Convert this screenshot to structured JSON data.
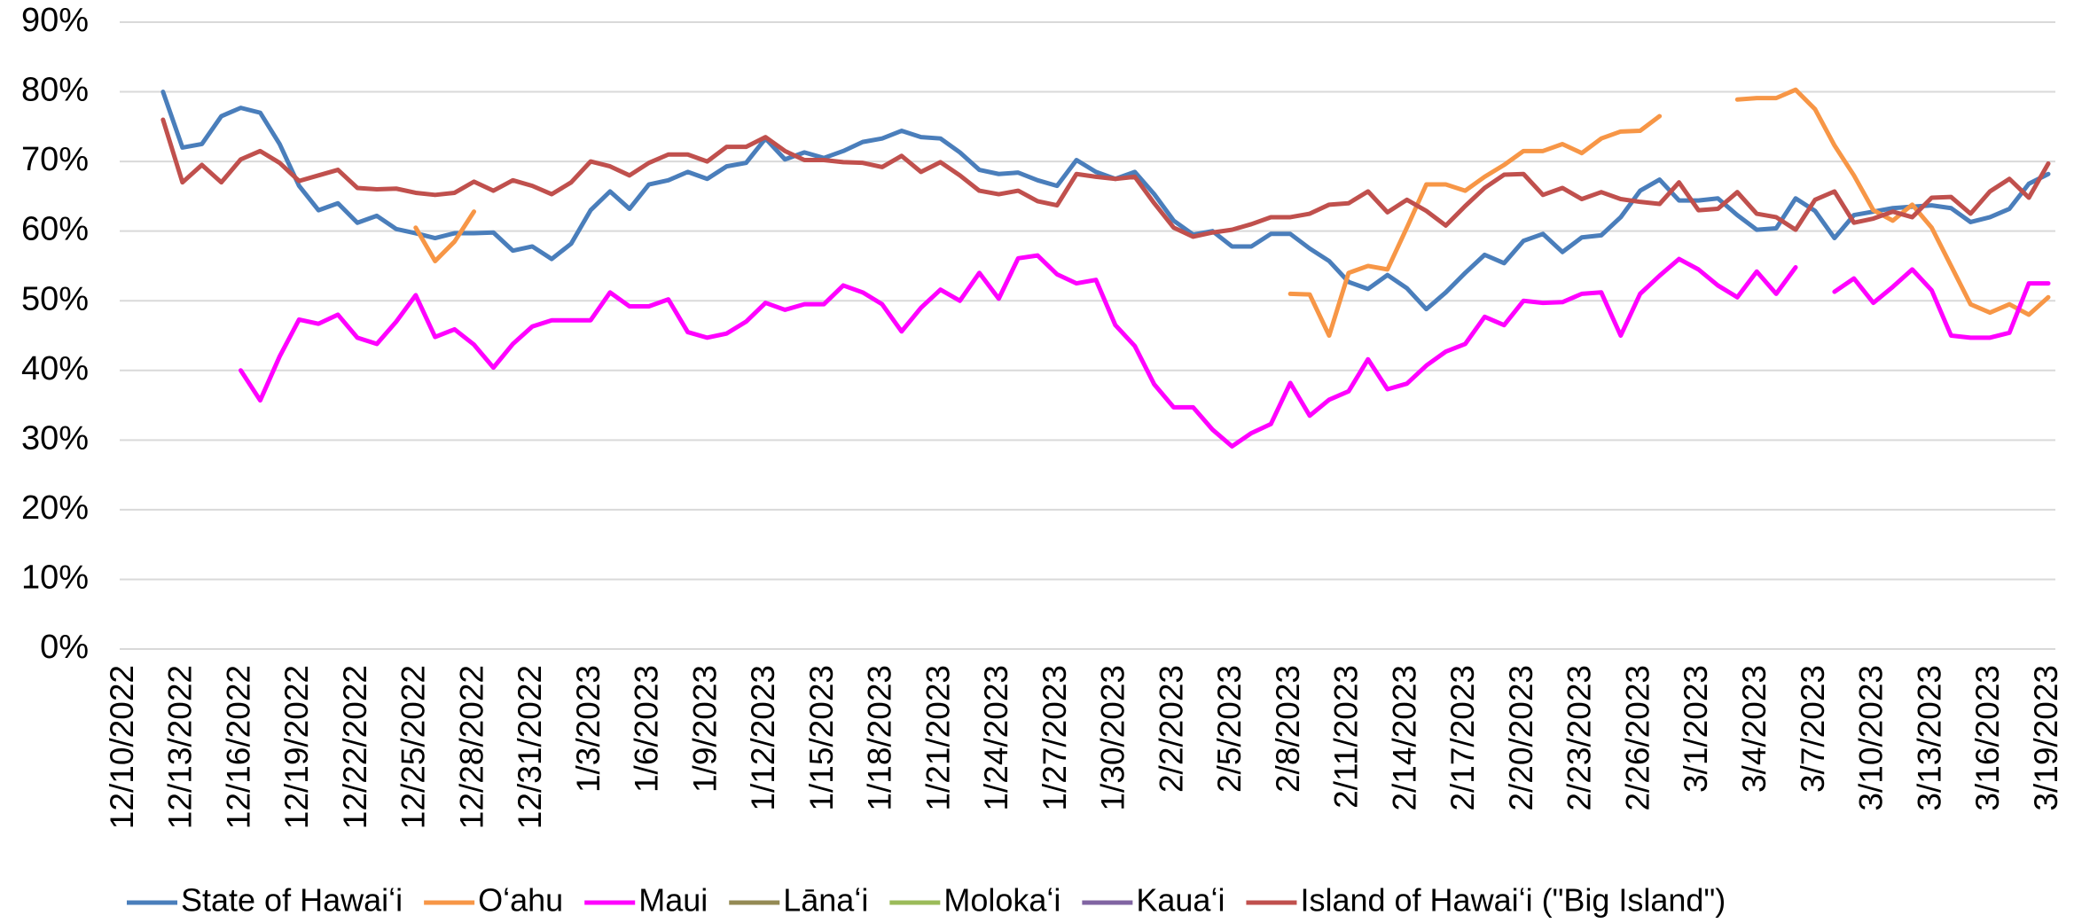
{
  "chart_data": {
    "type": "line",
    "categories": [
      "12/10/2022",
      null,
      null,
      "12/13/2022",
      null,
      null,
      "12/16/2022",
      null,
      null,
      "12/19/2022",
      null,
      null,
      "12/22/2022",
      null,
      null,
      "12/25/2022",
      null,
      null,
      "12/28/2022",
      null,
      null,
      "12/31/2022",
      null,
      null,
      "1/3/2023",
      null,
      null,
      "1/6/2023",
      null,
      null,
      "1/9/2023",
      null,
      null,
      "1/12/2023",
      null,
      null,
      "1/15/2023",
      null,
      null,
      "1/18/2023",
      null,
      null,
      "1/21/2023",
      null,
      null,
      "1/24/2023",
      null,
      null,
      "1/27/2023",
      null,
      null,
      "1/30/2023",
      null,
      null,
      "2/2/2023",
      null,
      null,
      "2/5/2023",
      null,
      null,
      "2/8/2023",
      null,
      null,
      "2/11/2023",
      null,
      null,
      "2/14/2023",
      null,
      null,
      "2/17/2023",
      null,
      null,
      "2/20/2023",
      null,
      null,
      "2/23/2023",
      null,
      null,
      "2/26/2023",
      null,
      null,
      "3/1/2023",
      null,
      null,
      "3/4/2023",
      null,
      null,
      "3/7/2023",
      null,
      null,
      "3/10/2023",
      null,
      null,
      "3/13/2023",
      null,
      null,
      "3/16/2023",
      null,
      null,
      "3/19/2023"
    ],
    "series": [
      {
        "name": "State of Hawaiʻi",
        "color": "#4a7ebb",
        "values": [
          null,
          null,
          80,
          72,
          72.5,
          76.5,
          77.7,
          77,
          72.5,
          66.5,
          63,
          64,
          61.2,
          62.2,
          60.3,
          59.7,
          59,
          59.7,
          59.7,
          59.8,
          57.2,
          57.8,
          56,
          58.2,
          63,
          65.7,
          63.2,
          66.7,
          67.3,
          68.5,
          67.5,
          69.3,
          69.8,
          73.3,
          70.3,
          71.3,
          70.5,
          71.5,
          72.8,
          73.3,
          74.4,
          73.5,
          73.3,
          71.3,
          68.8,
          68.2,
          68.4,
          67.3,
          66.5,
          70.2,
          68.5,
          67.5,
          68.5,
          65.3,
          61.5,
          59.5,
          60,
          57.8,
          57.8,
          59.6,
          59.6,
          57.5,
          55.7,
          52.7,
          51.7,
          53.7,
          51.8,
          48.8,
          51.2,
          54,
          56.6,
          55.4,
          58.6,
          59.6,
          57,
          59.1,
          59.4,
          62,
          65.8,
          67.4,
          64.4,
          64.4,
          64.7,
          62.3,
          60.2,
          60.4,
          64.7,
          62.9,
          59,
          62.3,
          62.8,
          63.3,
          63.5,
          63.7,
          63.3,
          61.3,
          62,
          63.2,
          66.8,
          68.2
        ]
      },
      {
        "name": "Oʻahu",
        "color": "#f79646",
        "values": [
          null,
          null,
          null,
          null,
          null,
          null,
          null,
          null,
          null,
          null,
          null,
          null,
          null,
          null,
          null,
          60.5,
          55.7,
          58.5,
          62.8,
          null,
          null,
          null,
          null,
          null,
          null,
          null,
          null,
          null,
          null,
          null,
          null,
          null,
          null,
          null,
          null,
          null,
          null,
          null,
          null,
          null,
          null,
          null,
          null,
          null,
          null,
          null,
          null,
          null,
          null,
          null,
          null,
          null,
          null,
          null,
          null,
          null,
          null,
          null,
          null,
          null,
          51,
          50.9,
          45,
          54,
          55,
          54.5,
          60.5,
          66.7,
          66.7,
          65.8,
          67.8,
          69.5,
          71.5,
          71.5,
          72.5,
          71.2,
          73.3,
          74.3,
          74.4,
          76.5,
          null,
          null,
          null,
          78.9,
          79.1,
          79.1,
          80.3,
          77.5,
          72.3,
          68,
          63,
          61.5,
          63.8,
          60.5,
          55,
          49.5,
          48.3,
          49.5,
          48,
          50.5
        ]
      },
      {
        "name": "Maui",
        "color": "#ff00ff",
        "values": [
          null,
          null,
          null,
          null,
          null,
          null,
          40,
          35.7,
          42,
          47.3,
          46.7,
          48,
          44.7,
          43.8,
          47,
          50.8,
          44.8,
          45.9,
          43.7,
          40.4,
          43.8,
          46.3,
          47.2,
          47.2,
          47.2,
          51.2,
          49.2,
          49.2,
          50.2,
          45.5,
          44.7,
          45.3,
          47,
          49.7,
          48.7,
          49.5,
          49.5,
          52.2,
          51.2,
          49.5,
          45.6,
          49,
          51.6,
          50,
          54,
          50.3,
          56.1,
          56.5,
          53.8,
          52.5,
          53,
          46.5,
          43.5,
          38,
          34.7,
          34.7,
          31.5,
          29.1,
          31,
          32.3,
          38.2,
          33.5,
          35.8,
          37,
          41.6,
          37.3,
          38.1,
          40.7,
          42.7,
          43.8,
          47.7,
          46.5,
          50,
          49.7,
          49.8,
          51,
          51.2,
          45,
          51,
          53.6,
          56,
          54.5,
          52.2,
          50.5,
          54.2,
          51,
          54.8,
          null,
          51.3,
          53.2,
          49.7,
          52,
          54.5,
          51.5,
          45,
          44.7,
          44.7,
          45.4,
          52.5,
          52.5
        ]
      },
      {
        "name": "Lānaʻi",
        "color": "#948a54",
        "values": [
          null,
          null,
          null,
          null,
          null,
          null,
          null,
          null,
          null,
          null,
          null,
          null,
          null,
          null,
          null,
          null,
          null,
          null,
          null,
          null,
          null,
          null,
          null,
          null,
          null,
          null,
          null,
          null,
          null,
          null,
          null,
          null,
          null,
          null,
          null,
          null,
          null,
          null,
          null,
          null,
          null,
          null,
          null,
          null,
          null,
          null,
          null,
          null,
          null,
          null,
          null,
          null,
          null,
          null,
          null,
          null,
          null,
          null,
          null,
          null,
          null,
          null,
          null,
          null,
          null,
          null,
          null,
          null,
          null,
          null,
          null,
          null,
          null,
          null,
          null,
          null,
          null,
          null,
          null,
          null,
          null,
          null,
          null,
          null,
          null,
          null,
          null,
          null,
          null,
          null,
          null,
          null,
          null,
          null,
          null,
          null,
          null,
          null,
          null,
          null
        ]
      },
      {
        "name": "Molokaʻi",
        "color": "#9bbb59",
        "values": [
          null,
          null,
          null,
          null,
          null,
          null,
          null,
          null,
          null,
          null,
          null,
          null,
          null,
          null,
          null,
          null,
          null,
          null,
          null,
          null,
          null,
          null,
          null,
          null,
          null,
          null,
          null,
          null,
          null,
          null,
          null,
          null,
          null,
          null,
          null,
          null,
          null,
          null,
          null,
          null,
          null,
          null,
          null,
          null,
          null,
          null,
          null,
          null,
          null,
          null,
          null,
          null,
          null,
          null,
          null,
          null,
          null,
          null,
          null,
          null,
          null,
          null,
          null,
          null,
          null,
          null,
          null,
          null,
          null,
          null,
          null,
          null,
          null,
          null,
          null,
          null,
          null,
          null,
          null,
          null,
          null,
          null,
          null,
          null,
          null,
          null,
          null,
          null,
          null,
          null,
          null,
          null,
          null,
          null,
          null,
          null,
          null,
          null,
          null,
          null
        ]
      },
      {
        "name": "Kauaʻi",
        "color": "#8064a2",
        "values": [
          null,
          null,
          null,
          null,
          null,
          null,
          null,
          null,
          null,
          null,
          null,
          null,
          null,
          null,
          null,
          null,
          null,
          null,
          null,
          null,
          null,
          null,
          null,
          null,
          null,
          null,
          null,
          null,
          null,
          null,
          null,
          null,
          null,
          null,
          null,
          null,
          null,
          null,
          null,
          null,
          null,
          null,
          null,
          null,
          null,
          null,
          null,
          null,
          null,
          null,
          null,
          null,
          null,
          null,
          null,
          null,
          null,
          null,
          null,
          null,
          null,
          null,
          null,
          null,
          null,
          null,
          null,
          null,
          null,
          null,
          null,
          null,
          null,
          null,
          null,
          null,
          null,
          null,
          null,
          null,
          null,
          null,
          null,
          null,
          null,
          null,
          null,
          null,
          null,
          null,
          null,
          null,
          null,
          null,
          null,
          null,
          null,
          null,
          null,
          null
        ]
      },
      {
        "name": "Island of Hawaiʻi (\"Big Island\")",
        "color": "#c0504d",
        "values": [
          null,
          null,
          76,
          67,
          69.5,
          67,
          70.3,
          71.5,
          69.8,
          67.2,
          68,
          68.8,
          66.2,
          66,
          66.1,
          65.5,
          65.2,
          65.5,
          67.1,
          65.8,
          67.3,
          66.5,
          65.3,
          67,
          70,
          69.3,
          68,
          69.8,
          71,
          71,
          70,
          72.1,
          72.1,
          73.5,
          71.5,
          70.2,
          70.2,
          69.9,
          69.8,
          69.2,
          70.8,
          68.5,
          69.9,
          68,
          65.8,
          65.3,
          65.8,
          64.3,
          63.7,
          68.2,
          67.8,
          67.5,
          67.8,
          64,
          60.5,
          59.2,
          59.8,
          60.2,
          61,
          62,
          62,
          62.5,
          63.8,
          64,
          65.7,
          62.7,
          64.5,
          62.9,
          60.8,
          63.6,
          66.2,
          68.1,
          68.2,
          65.2,
          66.2,
          64.6,
          65.6,
          64.6,
          64.2,
          63.9,
          67,
          63,
          63.2,
          65.6,
          62.5,
          62,
          60.2,
          64.5,
          65.7,
          61.2,
          61.8,
          62.8,
          62,
          64.8,
          64.9,
          62.5,
          65.7,
          67.5,
          64.8,
          69.7
        ]
      }
    ],
    "ylim": [
      0,
      90
    ],
    "yticks": [
      {
        "value": 0,
        "label": "0%"
      },
      {
        "value": 10,
        "label": "10%"
      },
      {
        "value": 20,
        "label": "20%"
      },
      {
        "value": 30,
        "label": "30%"
      },
      {
        "value": 40,
        "label": "40%"
      },
      {
        "value": 50,
        "label": "50%"
      },
      {
        "value": 60,
        "label": "60%"
      },
      {
        "value": 70,
        "label": "70%"
      },
      {
        "value": 80,
        "label": "80%"
      },
      {
        "value": 90,
        "label": "90%"
      }
    ],
    "grid": true,
    "legend": "bottom"
  }
}
